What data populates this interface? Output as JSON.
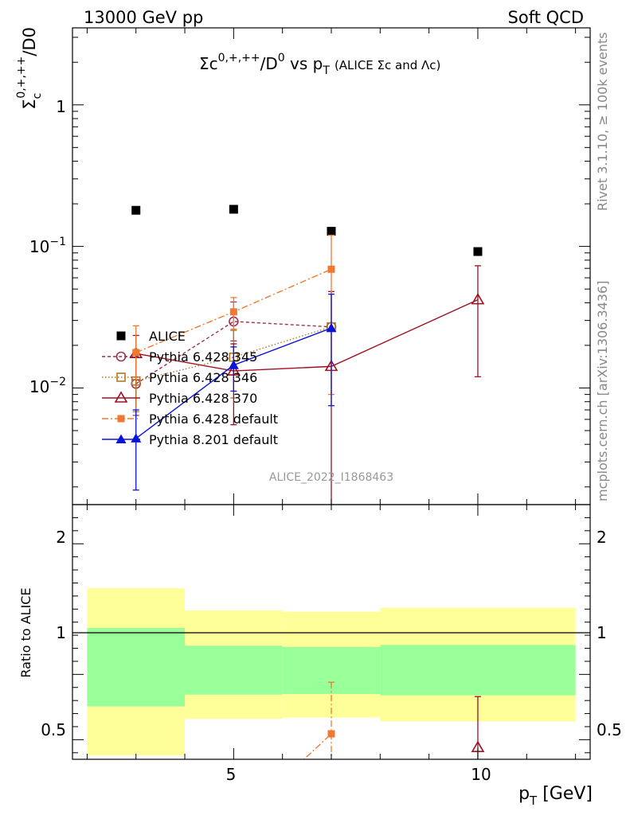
{
  "header": {
    "left": "13000 GeV pp",
    "right": "Soft QCD"
  },
  "side_labels": {
    "rivet": "Rivet 3.1.10, ≥ 100k events",
    "mcplots": "mcplots.cern.ch [arXiv:1306.3436]"
  },
  "chart_data": {
    "type": "scatter",
    "title": "Σc⁰ʸ⁺ʸ⁺⁺/D⁰ vs p_T (ALICE Σc and Λc)",
    "title_parts": {
      "main": "Σc",
      "sup1": "0,+,++",
      "mid": "/D",
      "sup2": "0",
      "vs": " vs p",
      "sub": "T",
      "extra": "(ALICE Σc and Λc)"
    },
    "analysis_id": "ALICE_2022_I1868463",
    "ylabel_main": "Σ",
    "ylabel_sub": "c",
    "ylabel_sup": "0,+,++",
    "ylabel_tail": "/D0",
    "ratio_ylabel": "Ratio to ALICE",
    "xlabel_main": "p",
    "xlabel_sub": "T",
    "xlabel_tail": " [GeV]",
    "xlim": [
      1.7,
      12.3
    ],
    "ylim": [
      0.0015,
      3.5
    ],
    "yscale": "log",
    "ratio_ylim": [
      0.35,
      2.3
    ],
    "x_tick_labels": [
      "5",
      "10"
    ],
    "y_tick_labels": [
      "10⁻²",
      "10⁻¹",
      "1"
    ],
    "ratio_tick_labels": [
      "0.5",
      "1",
      "2"
    ],
    "legend_position": "lower-left",
    "series": [
      {
        "name": "ALICE",
        "color": "#000000",
        "marker": "square",
        "x": [
          3,
          5,
          7,
          10
        ],
        "y": [
          0.18,
          0.183,
          0.128,
          0.092
        ]
      },
      {
        "name": "Pythia 6.428 345",
        "color": "#a03050",
        "marker": "open-circle",
        "dash": "4,3",
        "x": [
          3,
          5,
          7
        ],
        "y": [
          0.0107,
          0.0295,
          0.027
        ],
        "err_lo": [
          0.0064,
          0.0215,
          0.0
        ],
        "err_hi": [
          0.0165,
          0.0405,
          0.0
        ]
      },
      {
        "name": "Pythia 6.428 346",
        "color": "#b07828",
        "marker": "open-square",
        "dash": "1.5,2.5",
        "x": [
          3,
          5,
          7
        ],
        "y": [
          0.0112,
          0.0165,
          0.027
        ],
        "err_lo": [
          0.0068,
          0.0085,
          0.0
        ],
        "err_hi": [
          0.0175,
          0.0255,
          0.0
        ]
      },
      {
        "name": "Pythia 6.428 370",
        "color": "#a01020",
        "marker": "open-triangle",
        "dash": "",
        "x": [
          3,
          5,
          7,
          10
        ],
        "y": [
          0.0175,
          0.0132,
          0.0142,
          0.042
        ],
        "err_lo": [
          0.0115,
          0.0055,
          0.0001,
          0.012
        ],
        "err_hi": [
          0.0235,
          0.0205,
          0.048,
          0.073
        ]
      },
      {
        "name": "Pythia 6.428 default",
        "color": "#f07830",
        "marker": "filled-square",
        "dash": "8,3,2,3",
        "x": [
          3,
          5,
          7
        ],
        "y": [
          0.0178,
          0.0345,
          0.069
        ],
        "err_lo": [
          0.0115,
          0.026,
          0.009
        ],
        "err_hi": [
          0.0275,
          0.0435,
          0.12
        ]
      },
      {
        "name": "Pythia 8.201 default",
        "color": "#0a14d8",
        "marker": "filled-triangle",
        "dash": "",
        "x": [
          3,
          5,
          7
        ],
        "y": [
          0.0044,
          0.0145,
          0.0265
        ],
        "err_lo": [
          0.0019,
          0.0095,
          0.0075
        ],
        "err_hi": [
          0.007,
          0.0195,
          0.046
        ]
      }
    ],
    "ratio_bands": [
      {
        "x0": 2,
        "x1": 4,
        "stat_lo": 0.755,
        "stat_hi": 1.355,
        "tot_lo": 0.38,
        "tot_hi": 1.66
      },
      {
        "x0": 4,
        "x1": 6,
        "stat_lo": 0.845,
        "stat_hi": 1.22,
        "tot_lo": 0.66,
        "tot_hi": 1.49
      },
      {
        "x0": 6,
        "x1": 8,
        "stat_lo": 0.85,
        "stat_hi": 1.21,
        "tot_lo": 0.67,
        "tot_hi": 1.48
      },
      {
        "x0": 8,
        "x1": 12,
        "stat_lo": 0.84,
        "stat_hi": 1.225,
        "tot_lo": 0.64,
        "tot_hi": 1.51
      }
    ],
    "ratio_series": [
      {
        "name": "Pythia 6.428 370",
        "x": [
          10
        ],
        "y": [
          0.44
        ],
        "err_lo": [
          0.13
        ],
        "err_hi": [
          0.83
        ]
      },
      {
        "name": "Pythia 6.428 default",
        "x": [
          6.3,
          7
        ],
        "y": [
          0.3,
          0.545
        ],
        "err_lo": [
          0.0,
          0.07
        ],
        "err_hi": [
          0.0,
          0.94
        ]
      }
    ]
  }
}
